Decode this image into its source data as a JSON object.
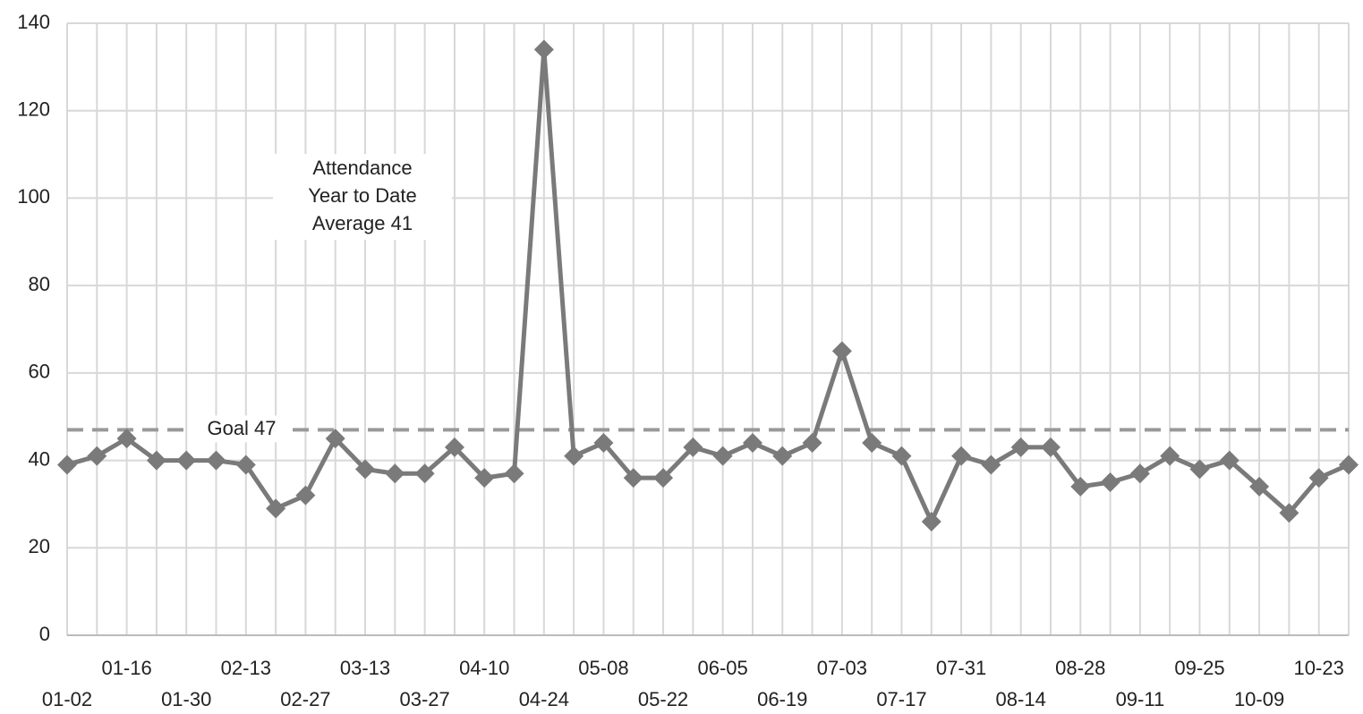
{
  "chart_data": {
    "type": "line",
    "categories": [
      "01-02",
      null,
      "01-16",
      null,
      "01-30",
      null,
      "02-13",
      null,
      "02-27",
      null,
      "03-13",
      null,
      "03-27",
      null,
      "04-10",
      null,
      "04-24",
      null,
      "05-08",
      null,
      "05-22",
      null,
      "06-05",
      null,
      "06-19",
      null,
      "07-03",
      null,
      "07-17",
      null,
      "07-31",
      null,
      "08-14",
      null,
      "08-28",
      null,
      "09-11",
      null,
      "09-25",
      null,
      "10-09",
      null,
      "10-23",
      null
    ],
    "values": [
      39,
      41,
      45,
      40,
      40,
      40,
      39,
      29,
      32,
      45,
      38,
      37,
      37,
      43,
      36,
      37,
      134,
      41,
      44,
      36,
      36,
      43,
      41,
      44,
      41,
      44,
      65,
      44,
      41,
      26,
      41,
      39,
      43,
      43,
      34,
      35,
      37,
      41,
      38,
      40,
      34,
      28,
      36,
      39
    ],
    "color": "#7a7a7a",
    "ylim": [
      0,
      140
    ],
    "yticks": [
      0,
      20,
      40,
      60,
      80,
      100,
      120,
      140
    ],
    "grid": true,
    "goal": 47,
    "goal_label": "Goal 47",
    "annotation_lines": [
      "Attendance",
      "Year to Date",
      "Average 41"
    ]
  }
}
